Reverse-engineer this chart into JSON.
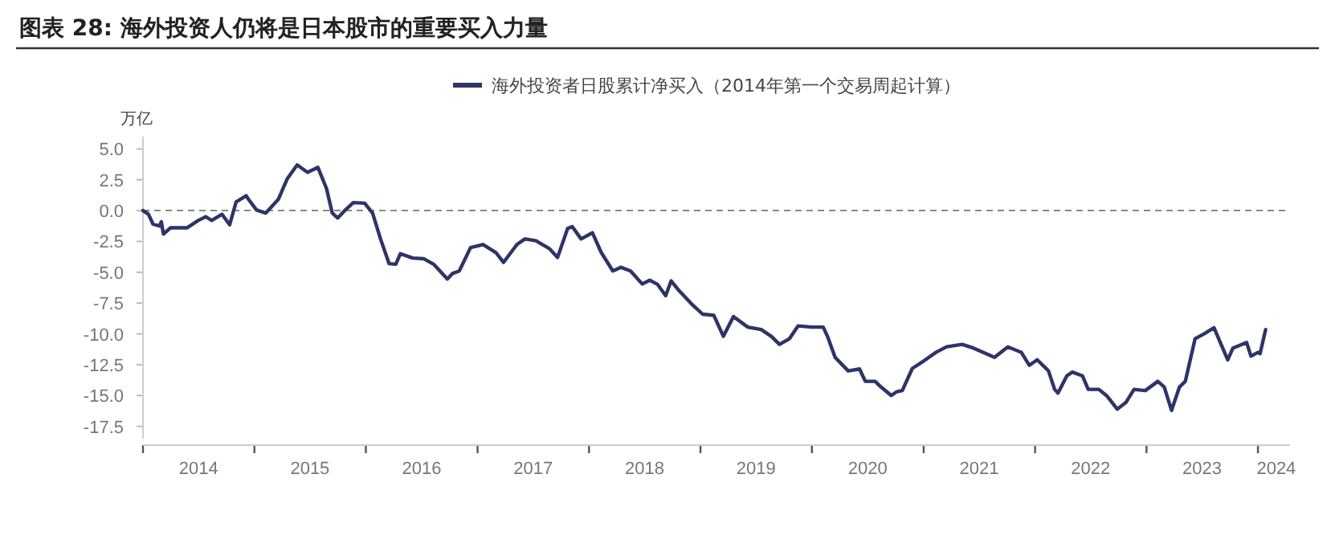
{
  "chart_data": {
    "type": "line",
    "title": "图表 28: 海外投资人仍将是日本股市的重要买入力量",
    "ylabel": "万亿",
    "legend": "top",
    "grid": false,
    "line_style": "solid",
    "marker": "none",
    "xlim": [
      "2014-01-01",
      "2024-04-15"
    ],
    "xticks": [
      {
        "value": "2014-01-01",
        "label": null
      },
      {
        "value": "2015-01-01",
        "label": null
      },
      {
        "value": "2016-01-01",
        "label": null
      },
      {
        "value": "2017-01-01",
        "label": null
      },
      {
        "value": "2018-01-01",
        "label": null
      },
      {
        "value": "2019-01-01",
        "label": null
      },
      {
        "value": "2020-01-01",
        "label": null
      },
      {
        "value": "2021-01-01",
        "label": null
      },
      {
        "value": "2022-01-01",
        "label": null
      },
      {
        "value": "2023-01-01",
        "label": null
      },
      {
        "value": "2024-01-01",
        "label": null
      },
      {
        "value": "2014-07-02",
        "label": "2014"
      },
      {
        "value": "2015-07-02",
        "label": "2015"
      },
      {
        "value": "2016-07-02",
        "label": "2016"
      },
      {
        "value": "2017-07-02",
        "label": "2017"
      },
      {
        "value": "2018-07-02",
        "label": "2018"
      },
      {
        "value": "2019-07-02",
        "label": "2019"
      },
      {
        "value": "2020-07-02",
        "label": "2020"
      },
      {
        "value": "2021-07-02",
        "label": "2021"
      },
      {
        "value": "2022-07-02",
        "label": "2022"
      },
      {
        "value": "2023-07-02",
        "label": "2023"
      },
      {
        "value": "2024-03-01",
        "label": "2024"
      }
    ],
    "ylim": [
      -18.5,
      6
    ],
    "yticks": [
      {
        "value": 5,
        "label": "5.0"
      },
      2.5,
      {
        "value": 0,
        "label": "0.0"
      },
      -2.5,
      {
        "value": -5,
        "label": "-5.0"
      },
      -7.5,
      {
        "value": -10,
        "label": "-10.0"
      },
      -12.5,
      {
        "value": -15,
        "label": "-15.0"
      },
      -17.5
    ],
    "ref_lines": [
      {
        "axis": "y",
        "value": 0,
        "label": null,
        "color": "#888888",
        "line_style": "dashed"
      }
    ],
    "series": [
      {
        "name": "海外投资者日股累计净买入（2014年第一个交易周起计算）",
        "color": "#2e3467",
        "x": [
          "2014-01-01",
          "2014-01-19",
          "2014-02-03",
          "2014-02-25",
          "2014-03-02",
          "2014-03-09",
          "2014-04-01",
          "2014-05-25",
          "2014-07-01",
          "2014-07-26",
          "2014-08-14",
          "2014-09-17",
          "2014-10-12",
          "2014-11-02",
          "2014-12-05",
          "2014-12-13",
          "2015-01-08",
          "2015-02-07",
          "2015-03-20",
          "2015-04-19",
          "2015-05-21",
          "2015-06-24",
          "2015-07-28",
          "2015-08-25",
          "2015-09-13",
          "2015-10-01",
          "2015-10-26",
          "2015-11-21",
          "2015-12-28",
          "2016-01-23",
          "2016-02-18",
          "2016-03-17",
          "2016-04-08",
          "2016-04-23",
          "2016-06-02",
          "2016-07-08",
          "2016-08-10",
          "2016-09-24",
          "2016-10-11",
          "2016-11-02",
          "2016-12-09",
          "2017-01-19",
          "2017-03-02",
          "2017-03-27",
          "2017-05-10",
          "2017-06-05",
          "2017-07-11",
          "2017-08-25",
          "2017-09-20",
          "2017-10-23",
          "2017-11-07",
          "2017-12-06",
          "2018-01-12",
          "2018-02-10",
          "2018-03-20",
          "2018-04-15",
          "2018-05-17",
          "2018-06-24",
          "2018-07-19",
          "2018-08-14",
          "2018-09-09",
          "2018-09-27",
          "2018-10-23",
          "2018-12-06",
          "2019-01-08",
          "2019-02-14",
          "2019-03-17",
          "2019-04-19",
          "2019-06-05",
          "2019-07-19",
          "2019-08-21",
          "2019-09-17",
          "2019-10-19",
          "2019-11-17",
          "2020-01-01",
          "2020-02-07",
          "2020-02-21",
          "2020-03-17",
          "2020-04-29",
          "2020-06-05",
          "2020-06-24",
          "2020-07-26",
          "2020-08-14",
          "2020-09-17",
          "2020-10-04",
          "2020-10-23",
          "2020-11-25",
          "2021-01-01",
          "2021-02-10",
          "2021-03-17",
          "2021-05-07",
          "2021-06-13",
          "2021-08-21",
          "2021-10-04",
          "2021-11-17",
          "2021-12-13",
          "2022-01-08",
          "2022-02-14",
          "2022-03-06",
          "2022-03-17",
          "2022-04-15",
          "2022-05-03",
          "2022-06-05",
          "2022-06-24",
          "2022-07-29",
          "2022-08-25",
          "2022-09-27",
          "2022-10-26",
          "2022-11-21",
          "2022-12-28",
          "2023-02-07",
          "2023-02-28",
          "2023-03-24",
          "2023-04-19",
          "2023-05-08",
          "2023-06-09",
          "2023-07-08",
          "2023-08-10",
          "2023-08-29",
          "2023-09-24",
          "2023-10-11",
          "2023-11-25",
          "2023-12-09",
          "2024-01-01",
          "2024-01-08",
          "2024-01-26"
        ],
        "values": [
          0,
          -0.3,
          -1.1,
          -1.25,
          -0.9,
          -1.9,
          -1.4,
          -1.4,
          -0.8,
          -0.5,
          -0.8,
          -0.3,
          -1.15,
          0.7,
          1.2,
          0.9,
          0.05,
          -0.2,
          0.9,
          2.6,
          3.7,
          3.1,
          3.5,
          1.8,
          -0.2,
          -0.6,
          0.05,
          0.65,
          0.6,
          -0.2,
          -2.3,
          -4.3,
          -4.35,
          -3.5,
          -3.85,
          -3.9,
          -4.35,
          -5.55,
          -5.1,
          -4.9,
          -3.0,
          -2.75,
          -3.4,
          -4.2,
          -2.75,
          -2.3,
          -2.45,
          -3.1,
          -3.8,
          -1.45,
          -1.3,
          -2.3,
          -1.8,
          -3.4,
          -4.9,
          -4.6,
          -4.9,
          -5.95,
          -5.65,
          -6.0,
          -6.9,
          -5.7,
          -6.5,
          -7.65,
          -8.4,
          -8.5,
          -10.2,
          -8.6,
          -9.45,
          -9.65,
          -10.2,
          -10.85,
          -10.4,
          -9.35,
          -9.45,
          -9.45,
          -10.2,
          -11.9,
          -13.0,
          -12.85,
          -13.85,
          -13.85,
          -14.3,
          -15.0,
          -14.7,
          -14.6,
          -12.8,
          -12.2,
          -11.5,
          -11.05,
          -10.85,
          -11.15,
          -11.9,
          -11.05,
          -11.5,
          -12.55,
          -12.1,
          -13.0,
          -14.5,
          -14.8,
          -13.4,
          -13.1,
          -13.4,
          -14.5,
          -14.5,
          -15.05,
          -16.1,
          -15.55,
          -14.5,
          -14.6,
          -13.85,
          -14.3,
          -16.2,
          -14.3,
          -13.85,
          -10.4,
          -10.0,
          -9.5,
          -10.6,
          -12.1,
          -11.15,
          -10.7,
          -11.8,
          -11.5,
          -11.6,
          -9.65
        ]
      }
    ]
  }
}
